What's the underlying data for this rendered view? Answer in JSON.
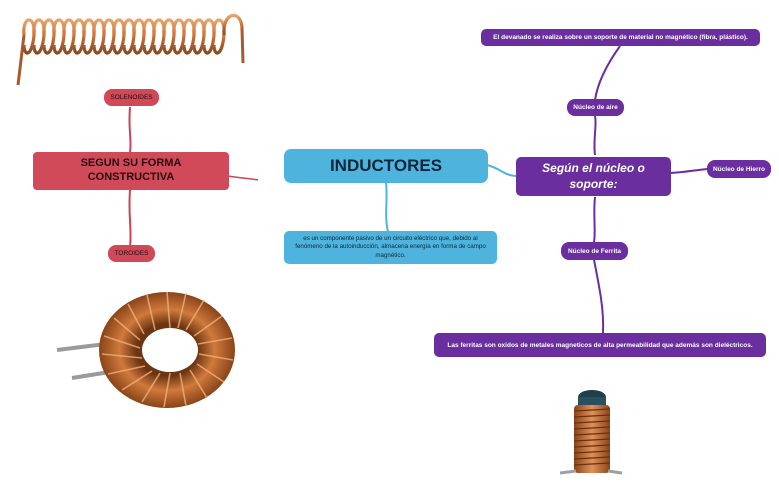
{
  "center": {
    "title": "INDUCTORES",
    "definition": "es un componente pasivo de un circuito eléctrico que, debido al fenómeno de la autoinducción, almacena energía en forma de campo magnético."
  },
  "left_branch": {
    "title": "SEGUN SU FORMA CONSTRUCTIVA",
    "children": [
      "SOLENOIDES",
      "TOROIDES"
    ]
  },
  "right_branch": {
    "title": "Según el núcleo o soporte:",
    "children": [
      "Núcleo de aire",
      "Núcleo de Hierro",
      "Núcleo de Ferrita"
    ],
    "air_note": "El devanado se realiza sobre un soporte de material no magnético (fibra, plástico).",
    "ferrite_note": "Las ferritas son oxidos de metales magneticos de alta permeabilidad que además son dieléctricos."
  },
  "colors": {
    "red": "#d04a5a",
    "blue": "#4fb4dd",
    "purple": "#6a2e9e",
    "copper": "#c8723a"
  },
  "images": [
    "solenoid-coil",
    "toroid-coil",
    "ferrite-rod-coil"
  ]
}
